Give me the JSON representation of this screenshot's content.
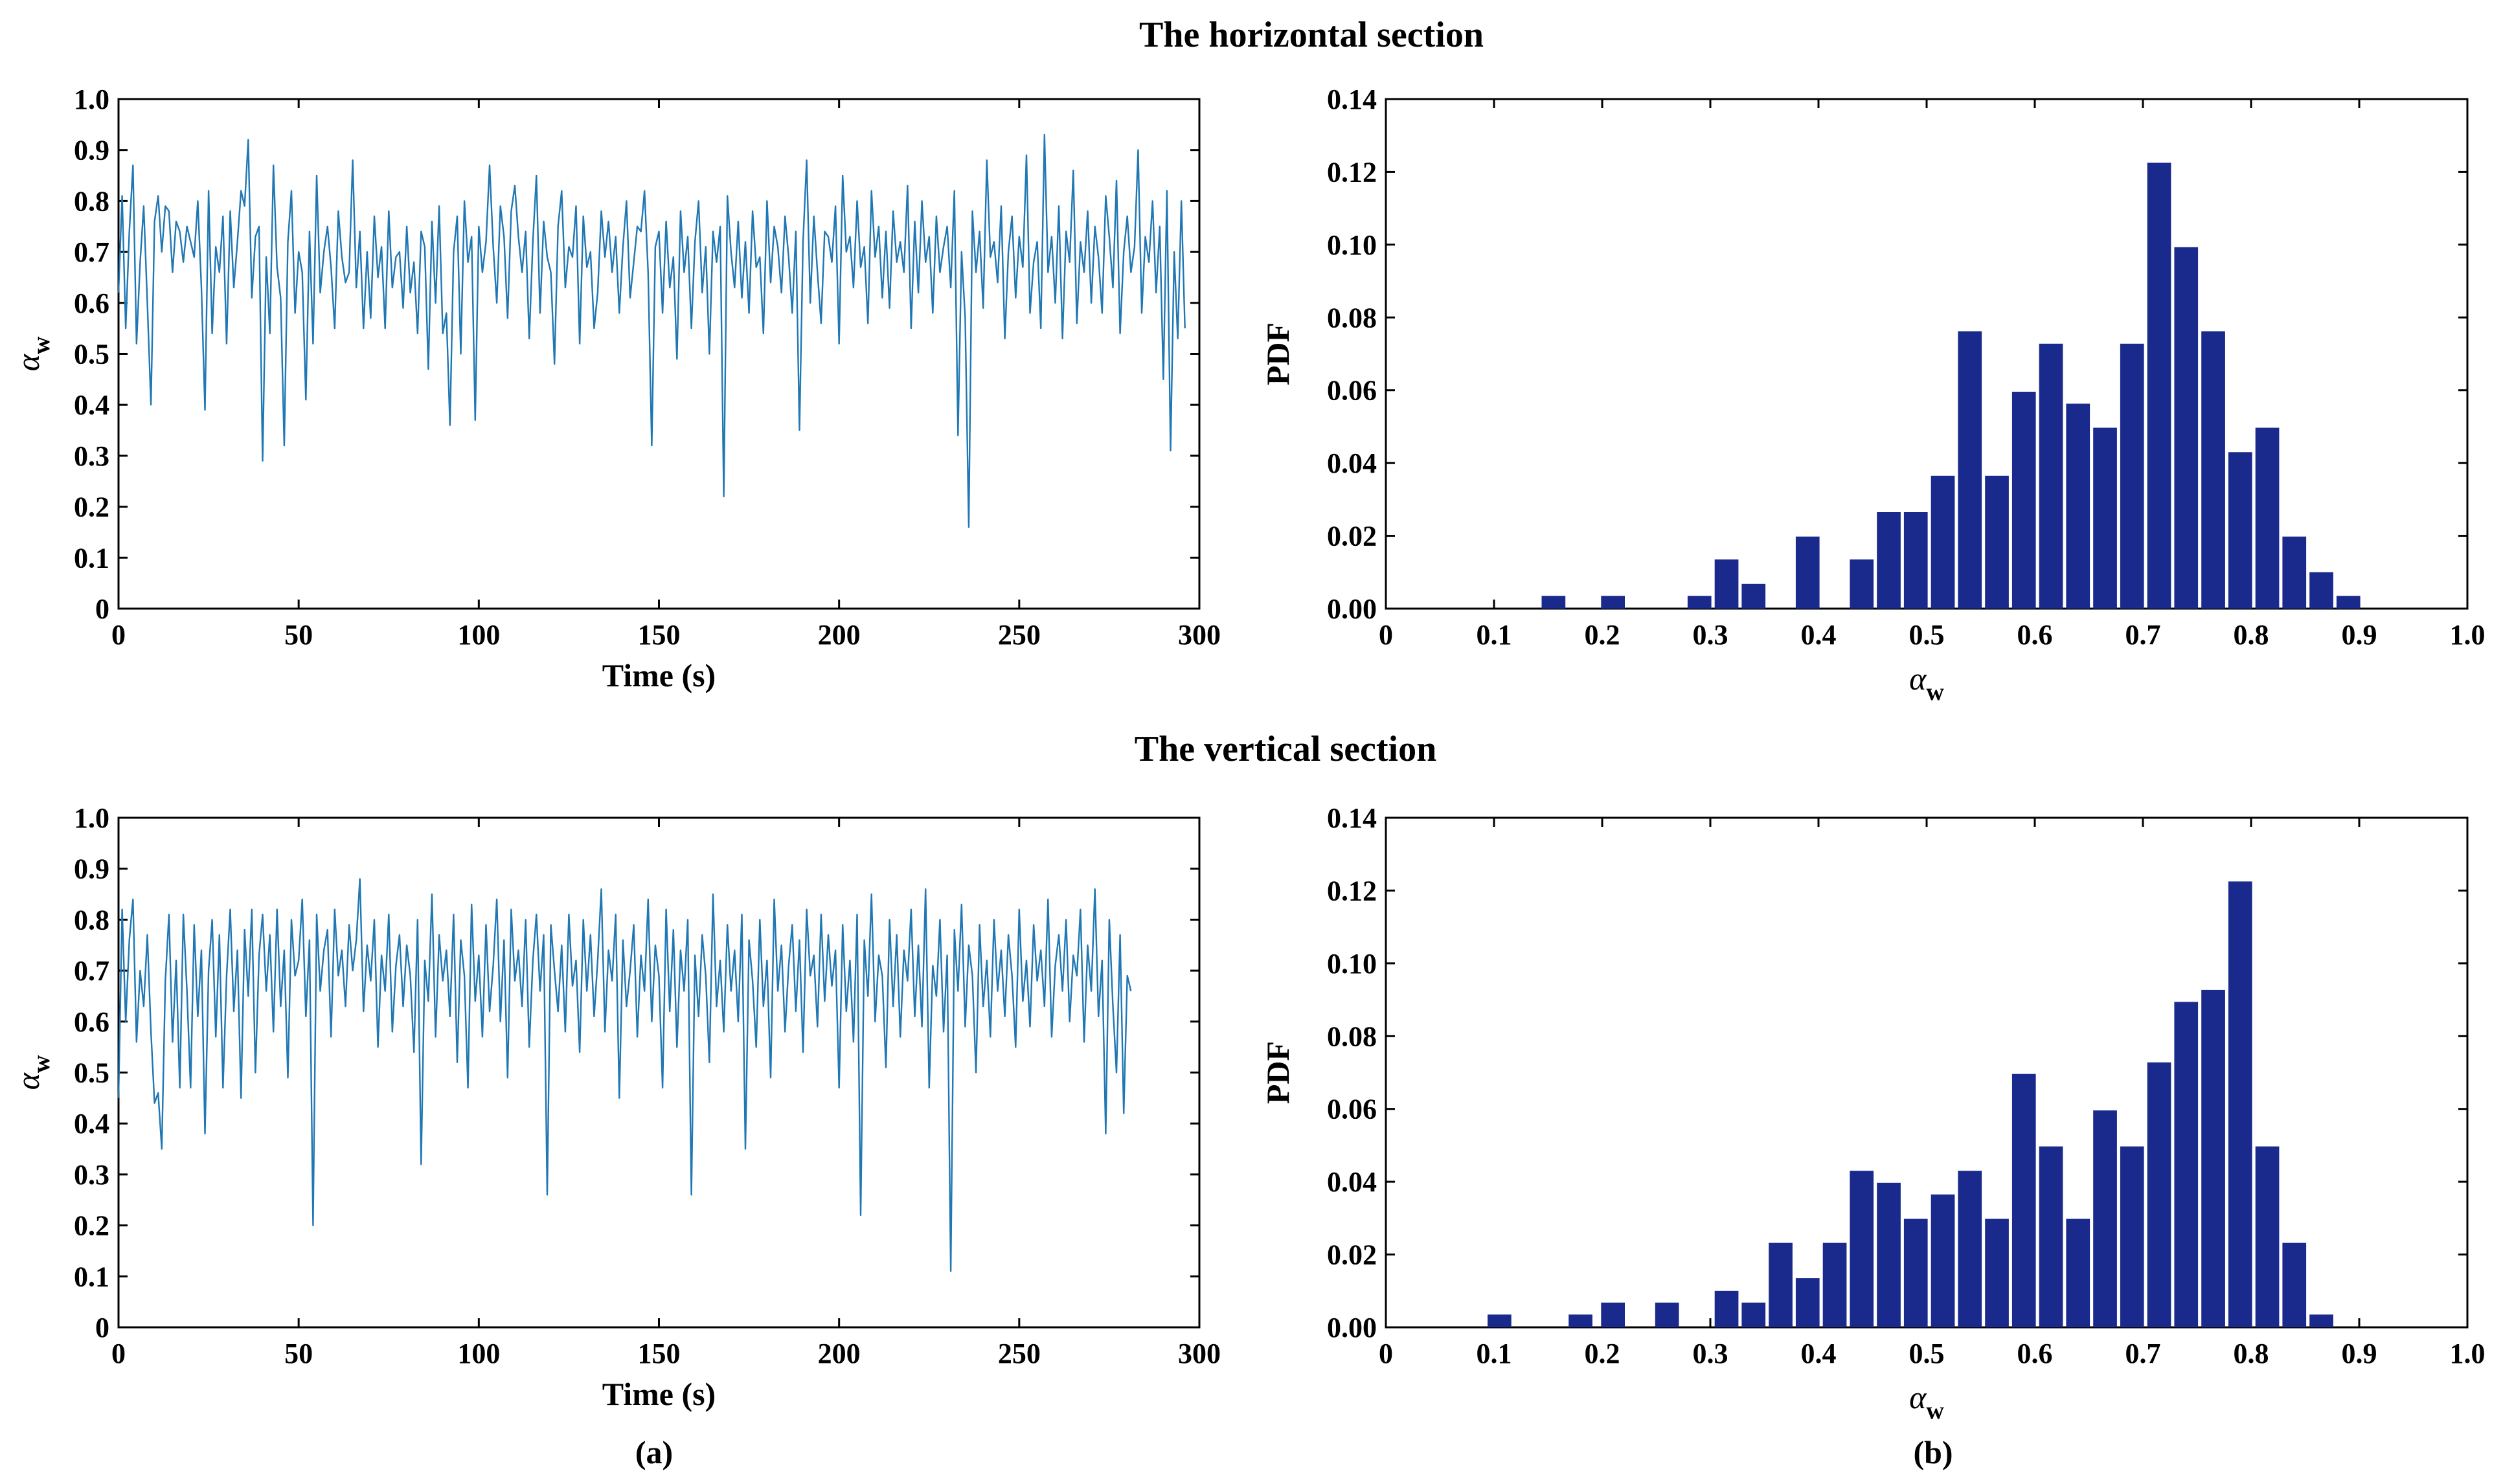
{
  "section_titles": {
    "top": "The horizontal section",
    "bottom": "The vertical section"
  },
  "panel_labels": {
    "a": "(a)",
    "b": "(b)"
  },
  "colors": {
    "line": "#1f77b4",
    "bar": "#1a2a8c",
    "axis": "#000000"
  },
  "chart_data": [
    {
      "id": "ts_top",
      "type": "line",
      "section": "The horizontal section",
      "xlabel": "Time (s)",
      "ylabel": "α",
      "ylabel_sub": "w",
      "xlim": [
        0,
        300
      ],
      "ylim": [
        0,
        1.0
      ],
      "xticks": [
        0,
        50,
        100,
        150,
        200,
        250,
        300
      ],
      "xtick_labels": [
        "0",
        "50",
        "100",
        "150",
        "200",
        "250",
        "300"
      ],
      "yticks": [
        0,
        0.1,
        0.2,
        0.3,
        0.4,
        0.5,
        0.6,
        0.7,
        0.8,
        0.9,
        1.0
      ],
      "ytick_labels": [
        "0",
        "0.1",
        "0.2",
        "0.3",
        "0.4",
        "0.5",
        "0.6",
        "0.7",
        "0.8",
        "0.9",
        "1.0"
      ],
      "series": [
        {
          "name": "alpha_w",
          "x_step": 1,
          "values": [
            0.62,
            0.81,
            0.55,
            0.74,
            0.87,
            0.52,
            0.68,
            0.79,
            0.6,
            0.4,
            0.76,
            0.81,
            0.7,
            0.79,
            0.78,
            0.66,
            0.76,
            0.74,
            0.68,
            0.75,
            0.72,
            0.69,
            0.8,
            0.63,
            0.39,
            0.82,
            0.54,
            0.71,
            0.66,
            0.77,
            0.52,
            0.78,
            0.63,
            0.72,
            0.82,
            0.79,
            0.92,
            0.61,
            0.73,
            0.75,
            0.29,
            0.69,
            0.54,
            0.87,
            0.67,
            0.61,
            0.32,
            0.72,
            0.82,
            0.58,
            0.7,
            0.66,
            0.41,
            0.74,
            0.52,
            0.85,
            0.62,
            0.7,
            0.75,
            0.67,
            0.55,
            0.78,
            0.69,
            0.64,
            0.66,
            0.88,
            0.63,
            0.74,
            0.55,
            0.7,
            0.57,
            0.77,
            0.65,
            0.71,
            0.55,
            0.78,
            0.63,
            0.69,
            0.7,
            0.59,
            0.75,
            0.62,
            0.68,
            0.54,
            0.74,
            0.71,
            0.47,
            0.76,
            0.6,
            0.79,
            0.54,
            0.58,
            0.36,
            0.7,
            0.77,
            0.5,
            0.8,
            0.68,
            0.73,
            0.37,
            0.75,
            0.66,
            0.72,
            0.87,
            0.71,
            0.6,
            0.79,
            0.73,
            0.57,
            0.78,
            0.83,
            0.73,
            0.66,
            0.74,
            0.53,
            0.72,
            0.85,
            0.58,
            0.76,
            0.69,
            0.66,
            0.48,
            0.75,
            0.82,
            0.63,
            0.71,
            0.69,
            0.79,
            0.52,
            0.77,
            0.67,
            0.7,
            0.55,
            0.62,
            0.78,
            0.69,
            0.76,
            0.66,
            0.73,
            0.58,
            0.71,
            0.8,
            0.61,
            0.68,
            0.75,
            0.74,
            0.82,
            0.66,
            0.32,
            0.71,
            0.74,
            0.58,
            0.76,
            0.63,
            0.69,
            0.49,
            0.78,
            0.66,
            0.73,
            0.55,
            0.72,
            0.8,
            0.62,
            0.71,
            0.5,
            0.74,
            0.68,
            0.75,
            0.22,
            0.81,
            0.7,
            0.63,
            0.76,
            0.61,
            0.72,
            0.58,
            0.78,
            0.67,
            0.69,
            0.54,
            0.8,
            0.64,
            0.75,
            0.71,
            0.62,
            0.77,
            0.69,
            0.58,
            0.74,
            0.35,
            0.72,
            0.88,
            0.6,
            0.77,
            0.66,
            0.56,
            0.74,
            0.73,
            0.68,
            0.79,
            0.52,
            0.85,
            0.7,
            0.73,
            0.63,
            0.8,
            0.67,
            0.71,
            0.56,
            0.82,
            0.69,
            0.75,
            0.61,
            0.74,
            0.59,
            0.78,
            0.68,
            0.72,
            0.66,
            0.83,
            0.55,
            0.76,
            0.62,
            0.8,
            0.68,
            0.73,
            0.58,
            0.77,
            0.66,
            0.71,
            0.75,
            0.63,
            0.82,
            0.34,
            0.7,
            0.57,
            0.16,
            0.78,
            0.66,
            0.74,
            0.59,
            0.88,
            0.69,
            0.72,
            0.64,
            0.79,
            0.53,
            0.7,
            0.77,
            0.61,
            0.73,
            0.67,
            0.89,
            0.58,
            0.68,
            0.72,
            0.55,
            0.93,
            0.66,
            0.73,
            0.6,
            0.79,
            0.53,
            0.74,
            0.68,
            0.86,
            0.56,
            0.72,
            0.66,
            0.78,
            0.6,
            0.75,
            0.69,
            0.58,
            0.81,
            0.73,
            0.63,
            0.84,
            0.54,
            0.7,
            0.77,
            0.66,
            0.71,
            0.9,
            0.58,
            0.73,
            0.68,
            0.8,
            0.62,
            0.75,
            0.45,
            0.82,
            0.31,
            0.7,
            0.53,
            0.8,
            0.55
          ]
        }
      ]
    },
    {
      "id": "pdf_top",
      "type": "bar",
      "section": "The horizontal section",
      "xlabel": "α",
      "xlabel_sub": "w",
      "ylabel": "PDF",
      "xlim": [
        0,
        1.0
      ],
      "ylim": [
        0,
        0.14
      ],
      "bar_width": 0.022,
      "xticks": [
        0,
        0.1,
        0.2,
        0.3,
        0.4,
        0.5,
        0.6,
        0.7,
        0.8,
        0.9,
        1.0
      ],
      "xtick_labels": [
        "0",
        "0.1",
        "0.2",
        "0.3",
        "0.4",
        "0.5",
        "0.6",
        "0.7",
        "0.8",
        "0.9",
        "1.0"
      ],
      "yticks": [
        0,
        0.02,
        0.04,
        0.06,
        0.08,
        0.1,
        0.12,
        0.14
      ],
      "ytick_labels": [
        "0.00",
        "0.02",
        "0.04",
        "0.06",
        "0.08",
        "0.10",
        "0.12",
        "0.14"
      ],
      "x": [
        0.155,
        0.21,
        0.29,
        0.315,
        0.34,
        0.39,
        0.44,
        0.465,
        0.49,
        0.515,
        0.54,
        0.565,
        0.59,
        0.615,
        0.64,
        0.665,
        0.69,
        0.715,
        0.74,
        0.765,
        0.79,
        0.815,
        0.84,
        0.865,
        0.89,
        0.915
      ],
      "values": [
        0.0035,
        0.0035,
        0.0035,
        0.0135,
        0.0068,
        0.0198,
        0.0135,
        0.0265,
        0.0265,
        0.0365,
        0.0762,
        0.0365,
        0.0596,
        0.0728,
        0.0563,
        0.0497,
        0.0728,
        0.1225,
        0.0993,
        0.0762,
        0.043,
        0.0497,
        0.0198,
        0.01,
        0.0035,
        0.0
      ]
    },
    {
      "id": "ts_bottom",
      "type": "line",
      "section": "The vertical section",
      "xlabel": "Time (s)",
      "ylabel": "α",
      "ylabel_sub": "w",
      "xlim": [
        0,
        300
      ],
      "ylim": [
        0,
        1.0
      ],
      "xticks": [
        0,
        50,
        100,
        150,
        200,
        250,
        300
      ],
      "xtick_labels": [
        "0",
        "50",
        "100",
        "150",
        "200",
        "250",
        "300"
      ],
      "yticks": [
        0,
        0.1,
        0.2,
        0.3,
        0.4,
        0.5,
        0.6,
        0.7,
        0.8,
        0.9,
        1.0
      ],
      "ytick_labels": [
        "0",
        "0.1",
        "0.2",
        "0.3",
        "0.4",
        "0.5",
        "0.6",
        "0.7",
        "0.8",
        "0.9",
        "1.0"
      ],
      "series": [
        {
          "name": "alpha_w",
          "x_step": 1,
          "values": [
            0.45,
            0.82,
            0.6,
            0.76,
            0.84,
            0.56,
            0.7,
            0.63,
            0.77,
            0.58,
            0.44,
            0.46,
            0.35,
            0.68,
            0.81,
            0.56,
            0.72,
            0.47,
            0.81,
            0.66,
            0.47,
            0.79,
            0.61,
            0.74,
            0.38,
            0.7,
            0.8,
            0.57,
            0.77,
            0.47,
            0.69,
            0.82,
            0.62,
            0.74,
            0.45,
            0.78,
            0.65,
            0.82,
            0.5,
            0.73,
            0.81,
            0.66,
            0.77,
            0.58,
            0.82,
            0.63,
            0.74,
            0.49,
            0.8,
            0.69,
            0.72,
            0.84,
            0.61,
            0.76,
            0.2,
            0.81,
            0.66,
            0.74,
            0.78,
            0.57,
            0.82,
            0.69,
            0.74,
            0.63,
            0.79,
            0.7,
            0.76,
            0.88,
            0.62,
            0.75,
            0.68,
            0.8,
            0.55,
            0.73,
            0.66,
            0.81,
            0.58,
            0.71,
            0.77,
            0.63,
            0.75,
            0.69,
            0.54,
            0.8,
            0.32,
            0.72,
            0.64,
            0.85,
            0.57,
            0.77,
            0.68,
            0.74,
            0.61,
            0.81,
            0.52,
            0.76,
            0.69,
            0.47,
            0.83,
            0.64,
            0.73,
            0.57,
            0.79,
            0.62,
            0.71,
            0.84,
            0.6,
            0.76,
            0.49,
            0.82,
            0.68,
            0.74,
            0.63,
            0.8,
            0.55,
            0.72,
            0.81,
            0.66,
            0.77,
            0.26,
            0.79,
            0.7,
            0.62,
            0.75,
            0.58,
            0.81,
            0.67,
            0.72,
            0.54,
            0.8,
            0.66,
            0.77,
            0.61,
            0.72,
            0.86,
            0.58,
            0.74,
            0.68,
            0.81,
            0.45,
            0.76,
            0.63,
            0.7,
            0.79,
            0.57,
            0.73,
            0.66,
            0.84,
            0.6,
            0.75,
            0.69,
            0.47,
            0.82,
            0.62,
            0.78,
            0.55,
            0.74,
            0.66,
            0.8,
            0.26,
            0.73,
            0.61,
            0.77,
            0.69,
            0.52,
            0.85,
            0.63,
            0.72,
            0.58,
            0.79,
            0.66,
            0.74,
            0.6,
            0.81,
            0.35,
            0.76,
            0.68,
            0.55,
            0.8,
            0.63,
            0.72,
            0.49,
            0.84,
            0.66,
            0.75,
            0.58,
            0.71,
            0.79,
            0.62,
            0.76,
            0.54,
            0.82,
            0.69,
            0.73,
            0.59,
            0.81,
            0.64,
            0.77,
            0.67,
            0.74,
            0.47,
            0.79,
            0.62,
            0.72,
            0.56,
            0.81,
            0.22,
            0.76,
            0.65,
            0.85,
            0.6,
            0.73,
            0.69,
            0.51,
            0.8,
            0.63,
            0.77,
            0.57,
            0.74,
            0.68,
            0.82,
            0.61,
            0.75,
            0.59,
            0.86,
            0.47,
            0.71,
            0.65,
            0.8,
            0.58,
            0.73,
            0.11,
            0.78,
            0.66,
            0.83,
            0.59,
            0.75,
            0.69,
            0.5,
            0.79,
            0.63,
            0.72,
            0.57,
            0.8,
            0.66,
            0.74,
            0.61,
            0.77,
            0.69,
            0.55,
            0.82,
            0.64,
            0.72,
            0.59,
            0.79,
            0.68,
            0.74,
            0.63,
            0.84,
            0.57,
            0.71,
            0.77,
            0.66,
            0.8,
            0.6,
            0.73,
            0.69,
            0.82,
            0.56,
            0.75,
            0.66,
            0.86,
            0.61,
            0.72,
            0.38,
            0.8,
            0.63,
            0.5,
            0.77,
            0.42,
            0.69,
            0.66
          ]
        }
      ]
    },
    {
      "id": "pdf_bottom",
      "type": "bar",
      "section": "The vertical section",
      "xlabel": "α",
      "xlabel_sub": "w",
      "ylabel": "PDF",
      "xlim": [
        0,
        1.0
      ],
      "ylim": [
        0,
        0.14
      ],
      "bar_width": 0.022,
      "xticks": [
        0,
        0.1,
        0.2,
        0.3,
        0.4,
        0.5,
        0.6,
        0.7,
        0.8,
        0.9,
        1.0
      ],
      "xtick_labels": [
        "0",
        "0.1",
        "0.2",
        "0.3",
        "0.4",
        "0.5",
        "0.6",
        "0.7",
        "0.8",
        "0.9",
        "1.0"
      ],
      "yticks": [
        0,
        0.02,
        0.04,
        0.06,
        0.08,
        0.1,
        0.12,
        0.14
      ],
      "ytick_labels": [
        "0.00",
        "0.02",
        "0.04",
        "0.06",
        "0.08",
        "0.10",
        "0.12",
        "0.14"
      ],
      "x": [
        0.105,
        0.18,
        0.21,
        0.26,
        0.315,
        0.34,
        0.365,
        0.39,
        0.415,
        0.44,
        0.465,
        0.49,
        0.515,
        0.54,
        0.565,
        0.59,
        0.615,
        0.64,
        0.665,
        0.69,
        0.715,
        0.74,
        0.765,
        0.79,
        0.815,
        0.84,
        0.865,
        0.89
      ],
      "values": [
        0.0035,
        0.0035,
        0.0068,
        0.0068,
        0.01,
        0.0068,
        0.0232,
        0.0135,
        0.0232,
        0.043,
        0.0397,
        0.0298,
        0.0365,
        0.043,
        0.0298,
        0.0696,
        0.0497,
        0.0298,
        0.0596,
        0.0497,
        0.0728,
        0.0894,
        0.0927,
        0.1225,
        0.0497,
        0.0232,
        0.0035,
        0.0
      ]
    }
  ]
}
